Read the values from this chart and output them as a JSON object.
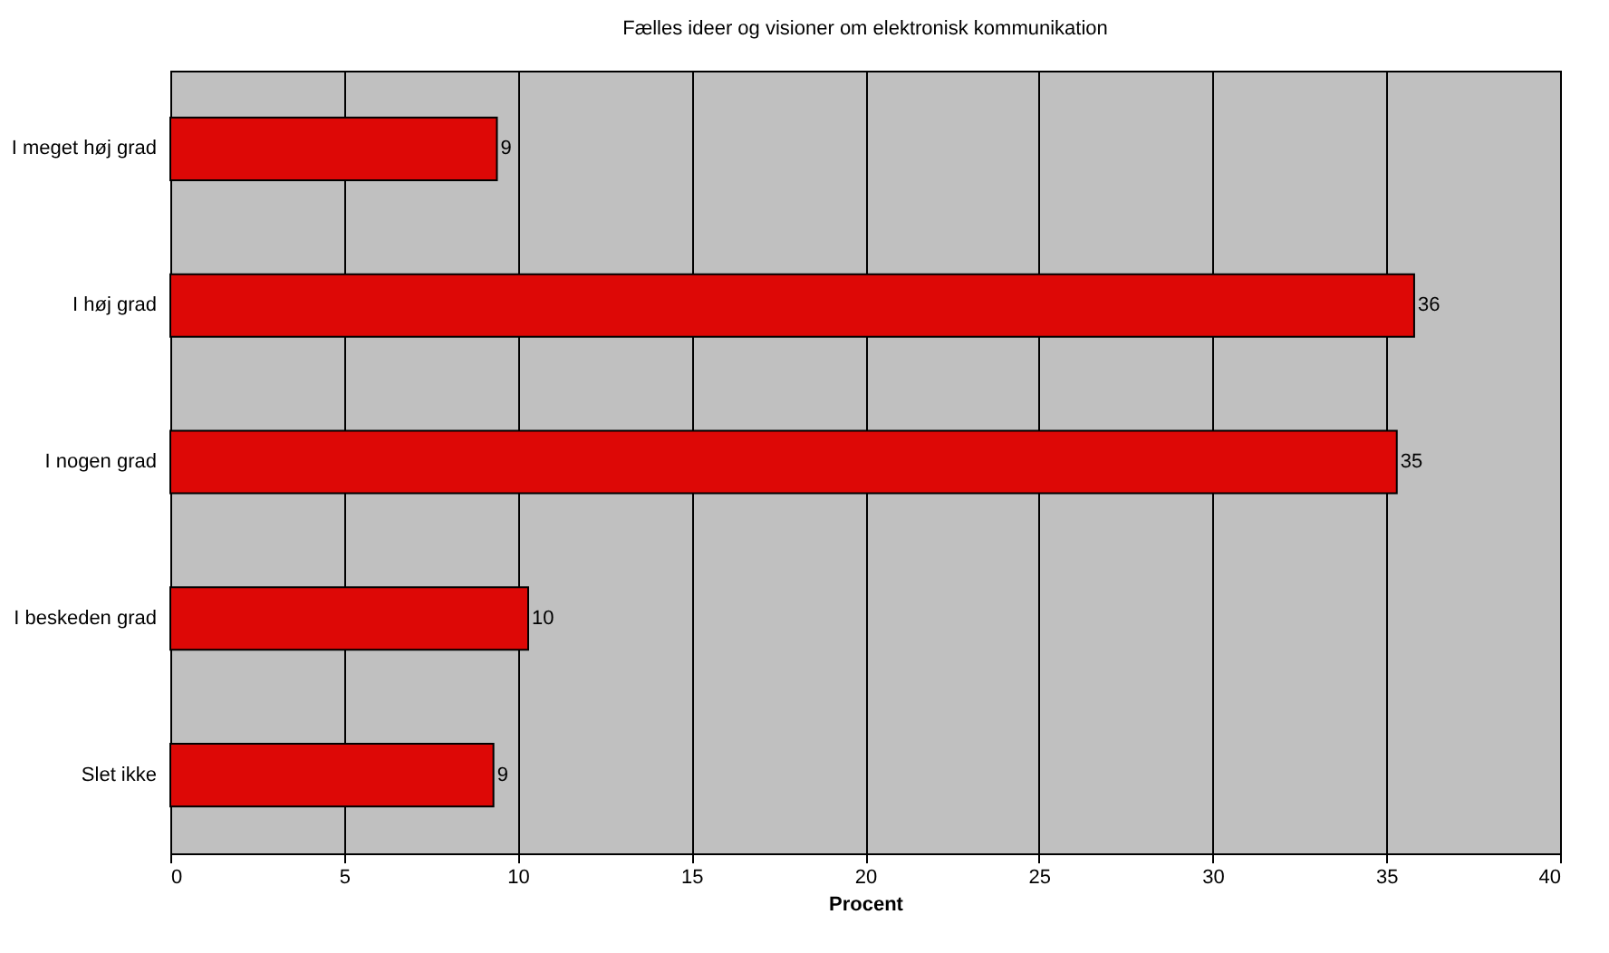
{
  "chart_data": {
    "type": "bar",
    "orientation": "horizontal",
    "title": "Fælles ideer og visioner om elektronisk kommunikation",
    "xlabel": "Procent",
    "categories": [
      "I meget høj grad",
      "I høj grad",
      "I nogen grad",
      "I beskeden grad",
      "Slet ikke"
    ],
    "values": [
      9.4,
      35.8,
      35.3,
      10.3,
      9.3
    ],
    "value_labels": [
      "9",
      "36",
      "35",
      "10",
      "9"
    ],
    "color": "#dd0806",
    "xlim": [
      0,
      40
    ],
    "xticks": [
      0,
      5,
      10,
      15,
      20,
      25,
      30,
      35,
      40
    ],
    "grid": "x"
  }
}
